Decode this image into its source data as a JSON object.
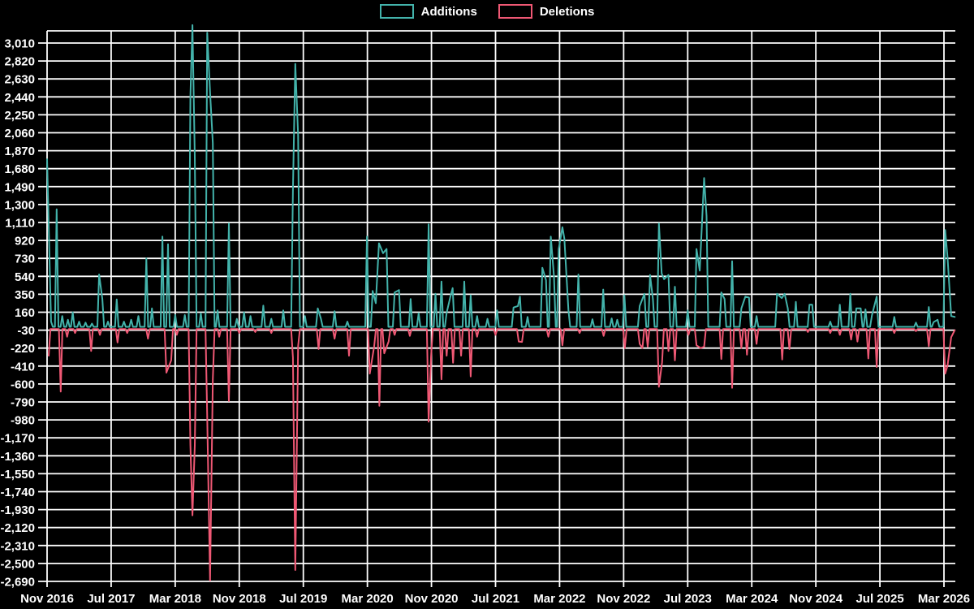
{
  "colors": {
    "background": "#000000",
    "grid": "#ffffff",
    "additions": "#43b3ab",
    "deletions": "#ef5874",
    "tick_label": "#ffffff"
  },
  "legend": [
    {
      "label": "Additions",
      "color": "#43b3ab"
    },
    {
      "label": "Deletions",
      "color": "#ef5874"
    }
  ],
  "chart_data": {
    "type": "line",
    "title": "",
    "xlabel": "",
    "ylabel": "",
    "x_unit": "months since Nov 2016 (weekly data points)",
    "x_tick_labels": [
      "Nov 2016",
      "Jul 2017",
      "Mar 2018",
      "Nov 2018",
      "Jul 2019",
      "Mar 2020",
      "Nov 2020",
      "Jul 2021",
      "Mar 2022",
      "Nov 2022",
      "Jul 2023",
      "Mar 2024",
      "Nov 2024",
      "Jul 2025",
      "Mar 2026"
    ],
    "x_tick_interval_months": 8,
    "x_domain_months": [
      0,
      112
    ],
    "y_ticks": [
      3010,
      2820,
      2630,
      2440,
      2250,
      2060,
      1870,
      1680,
      1490,
      1300,
      1110,
      920,
      730,
      540,
      350,
      160,
      -30,
      -220,
      -410,
      -600,
      -790,
      -980,
      -1170,
      -1360,
      -1550,
      -1740,
      -1930,
      -2120,
      -2310,
      -2500,
      -2690
    ],
    "y_range": [
      -2690,
      3010
    ],
    "grid": true,
    "legend_position": "top-center",
    "series": [
      {
        "name": "Additions",
        "color": "#43b3ab",
        "baseline": 5,
        "points": [
          [
            0,
            1780
          ],
          [
            0.5,
            60
          ],
          [
            1.2,
            1250
          ],
          [
            1.9,
            120
          ],
          [
            2.6,
            80
          ],
          [
            3.2,
            160
          ],
          [
            4,
            60
          ],
          [
            4.8,
            50
          ],
          [
            5.6,
            40
          ],
          [
            6.5,
            560
          ],
          [
            6.9,
            300
          ],
          [
            7.6,
            60
          ],
          [
            8.7,
            295
          ],
          [
            9.6,
            60
          ],
          [
            10.5,
            80
          ],
          [
            11.4,
            120
          ],
          [
            12.4,
            730
          ],
          [
            13.1,
            200
          ],
          [
            14.4,
            960
          ],
          [
            15.1,
            880
          ],
          [
            16,
            130
          ],
          [
            17.2,
            130
          ],
          [
            17.9,
            2450
          ],
          [
            18.15,
            3200
          ],
          [
            18.45,
            1800
          ],
          [
            19.2,
            150
          ],
          [
            20,
            3120
          ],
          [
            20.35,
            2490
          ],
          [
            20.7,
            1950
          ],
          [
            21.3,
            180
          ],
          [
            22.7,
            1100
          ],
          [
            23.7,
            90
          ],
          [
            24.6,
            160
          ],
          [
            25.4,
            120
          ],
          [
            27,
            230
          ],
          [
            28,
            90
          ],
          [
            29.5,
            180
          ],
          [
            30.7,
            1450
          ],
          [
            31,
            2790
          ],
          [
            31.35,
            2030
          ],
          [
            32.2,
            120
          ],
          [
            33.8,
            200
          ],
          [
            34.2,
            90
          ],
          [
            35.9,
            170
          ],
          [
            37.5,
            60
          ],
          [
            39.95,
            960
          ],
          [
            40.65,
            385
          ],
          [
            41.05,
            255
          ],
          [
            41.45,
            890
          ],
          [
            41.95,
            785
          ],
          [
            42.4,
            830
          ],
          [
            43.4,
            370
          ],
          [
            43.95,
            395
          ],
          [
            45.4,
            300
          ],
          [
            46.4,
            150
          ],
          [
            47.65,
            1090
          ],
          [
            48.5,
            355
          ],
          [
            49.25,
            485
          ],
          [
            49.9,
            155
          ],
          [
            50.4,
            340
          ],
          [
            50.65,
            415
          ],
          [
            52.1,
            485
          ],
          [
            52.9,
            340
          ],
          [
            53.7,
            120
          ],
          [
            55,
            90
          ],
          [
            56.2,
            180
          ],
          [
            58.25,
            210
          ],
          [
            58.8,
            225
          ],
          [
            59.05,
            325
          ],
          [
            60,
            110
          ],
          [
            61.85,
            630
          ],
          [
            62.3,
            500
          ],
          [
            62.9,
            960
          ],
          [
            63.3,
            540
          ],
          [
            63.9,
            830
          ],
          [
            64.35,
            1060
          ],
          [
            64.6,
            940
          ],
          [
            65.1,
            185
          ],
          [
            66.35,
            560
          ],
          [
            68.1,
            85
          ],
          [
            69.45,
            400
          ],
          [
            70.5,
            95
          ],
          [
            71.2,
            80
          ],
          [
            72.1,
            340
          ],
          [
            74,
            225
          ],
          [
            74.6,
            355
          ],
          [
            75.3,
            555
          ],
          [
            75.65,
            300
          ],
          [
            76.4,
            1100
          ],
          [
            76.75,
            570
          ],
          [
            77.05,
            510
          ],
          [
            77.6,
            555
          ],
          [
            78.4,
            430
          ],
          [
            80,
            180
          ],
          [
            81.1,
            830
          ],
          [
            81.5,
            600
          ],
          [
            82.05,
            1580
          ],
          [
            82.35,
            1180
          ],
          [
            84.2,
            370
          ],
          [
            84.6,
            300
          ],
          [
            85.55,
            700
          ],
          [
            86.7,
            200
          ],
          [
            87.2,
            325
          ],
          [
            87.65,
            315
          ],
          [
            88.6,
            120
          ],
          [
            91.15,
            355
          ],
          [
            91.75,
            310
          ],
          [
            92.1,
            355
          ],
          [
            92.5,
            200
          ],
          [
            93.5,
            270
          ],
          [
            95.2,
            240
          ],
          [
            95.55,
            240
          ],
          [
            97.8,
            60
          ],
          [
            99,
            240
          ],
          [
            100.3,
            355
          ],
          [
            101.05,
            200
          ],
          [
            101.6,
            200
          ],
          [
            102.2,
            190
          ],
          [
            103,
            125
          ],
          [
            103.6,
            325
          ],
          [
            105.8,
            110
          ],
          [
            108.5,
            50
          ],
          [
            110.1,
            215
          ],
          [
            110.7,
            55
          ],
          [
            111.2,
            80
          ],
          [
            112.15,
            1030
          ],
          [
            112.45,
            740
          ],
          [
            112.9,
            120
          ],
          [
            113.35,
            110
          ]
        ]
      },
      {
        "name": "Deletions",
        "color": "#ef5874",
        "baseline": -18,
        "points": [
          [
            0.2,
            -300
          ],
          [
            1.7,
            -680
          ],
          [
            2.5,
            -100
          ],
          [
            3.5,
            -60
          ],
          [
            5.5,
            -250
          ],
          [
            6.6,
            -80
          ],
          [
            8.8,
            -160
          ],
          [
            10,
            -60
          ],
          [
            12.6,
            -120
          ],
          [
            14.9,
            -480
          ],
          [
            15.5,
            -350
          ],
          [
            16.2,
            -80
          ],
          [
            17.9,
            -1250
          ],
          [
            18.15,
            -1990
          ],
          [
            18.45,
            -1250
          ],
          [
            20,
            -950
          ],
          [
            20.35,
            -2680
          ],
          [
            20.7,
            -550
          ],
          [
            21.5,
            -100
          ],
          [
            22.7,
            -780
          ],
          [
            24,
            -60
          ],
          [
            26,
            -50
          ],
          [
            28,
            -60
          ],
          [
            30.7,
            -320
          ],
          [
            31,
            -2570
          ],
          [
            31.35,
            -200
          ],
          [
            33.9,
            -230
          ],
          [
            35.9,
            -120
          ],
          [
            37.7,
            -300
          ],
          [
            40.3,
            -490
          ],
          [
            40.85,
            -200
          ],
          [
            41.5,
            -830
          ],
          [
            42.1,
            -275
          ],
          [
            42.65,
            -150
          ],
          [
            43.4,
            -80
          ],
          [
            45.3,
            -90
          ],
          [
            47.65,
            -1000
          ],
          [
            47.95,
            -310
          ],
          [
            49.25,
            -550
          ],
          [
            49.9,
            -300
          ],
          [
            50.7,
            -375
          ],
          [
            51.7,
            -300
          ],
          [
            52.9,
            -520
          ],
          [
            53.7,
            -100
          ],
          [
            56,
            -80
          ],
          [
            58.9,
            -150
          ],
          [
            59.3,
            -155
          ],
          [
            62.6,
            -100
          ],
          [
            64.35,
            -190
          ],
          [
            66.5,
            -60
          ],
          [
            69.5,
            -90
          ],
          [
            72.15,
            -220
          ],
          [
            74,
            -175
          ],
          [
            74.35,
            -220
          ],
          [
            75,
            -205
          ],
          [
            76.4,
            -630
          ],
          [
            76.8,
            -370
          ],
          [
            77.6,
            -250
          ],
          [
            78.4,
            -350
          ],
          [
            80.1,
            -80
          ],
          [
            81.1,
            -190
          ],
          [
            81.6,
            -220
          ],
          [
            82.05,
            -205
          ],
          [
            84.2,
            -335
          ],
          [
            85.55,
            -640
          ],
          [
            86.7,
            -220
          ],
          [
            87.4,
            -290
          ],
          [
            88.6,
            -175
          ],
          [
            91.8,
            -340
          ],
          [
            92.7,
            -230
          ],
          [
            95,
            -50
          ],
          [
            97.8,
            -60
          ],
          [
            99,
            -80
          ],
          [
            100.4,
            -130
          ],
          [
            101.2,
            -150
          ],
          [
            102.55,
            -330
          ],
          [
            103.6,
            -420
          ],
          [
            105.8,
            -60
          ],
          [
            108.5,
            -40
          ],
          [
            110.1,
            -200
          ],
          [
            112.15,
            -490
          ],
          [
            112.45,
            -405
          ],
          [
            112.9,
            -105
          ],
          [
            113.35,
            -30
          ]
        ]
      }
    ]
  }
}
